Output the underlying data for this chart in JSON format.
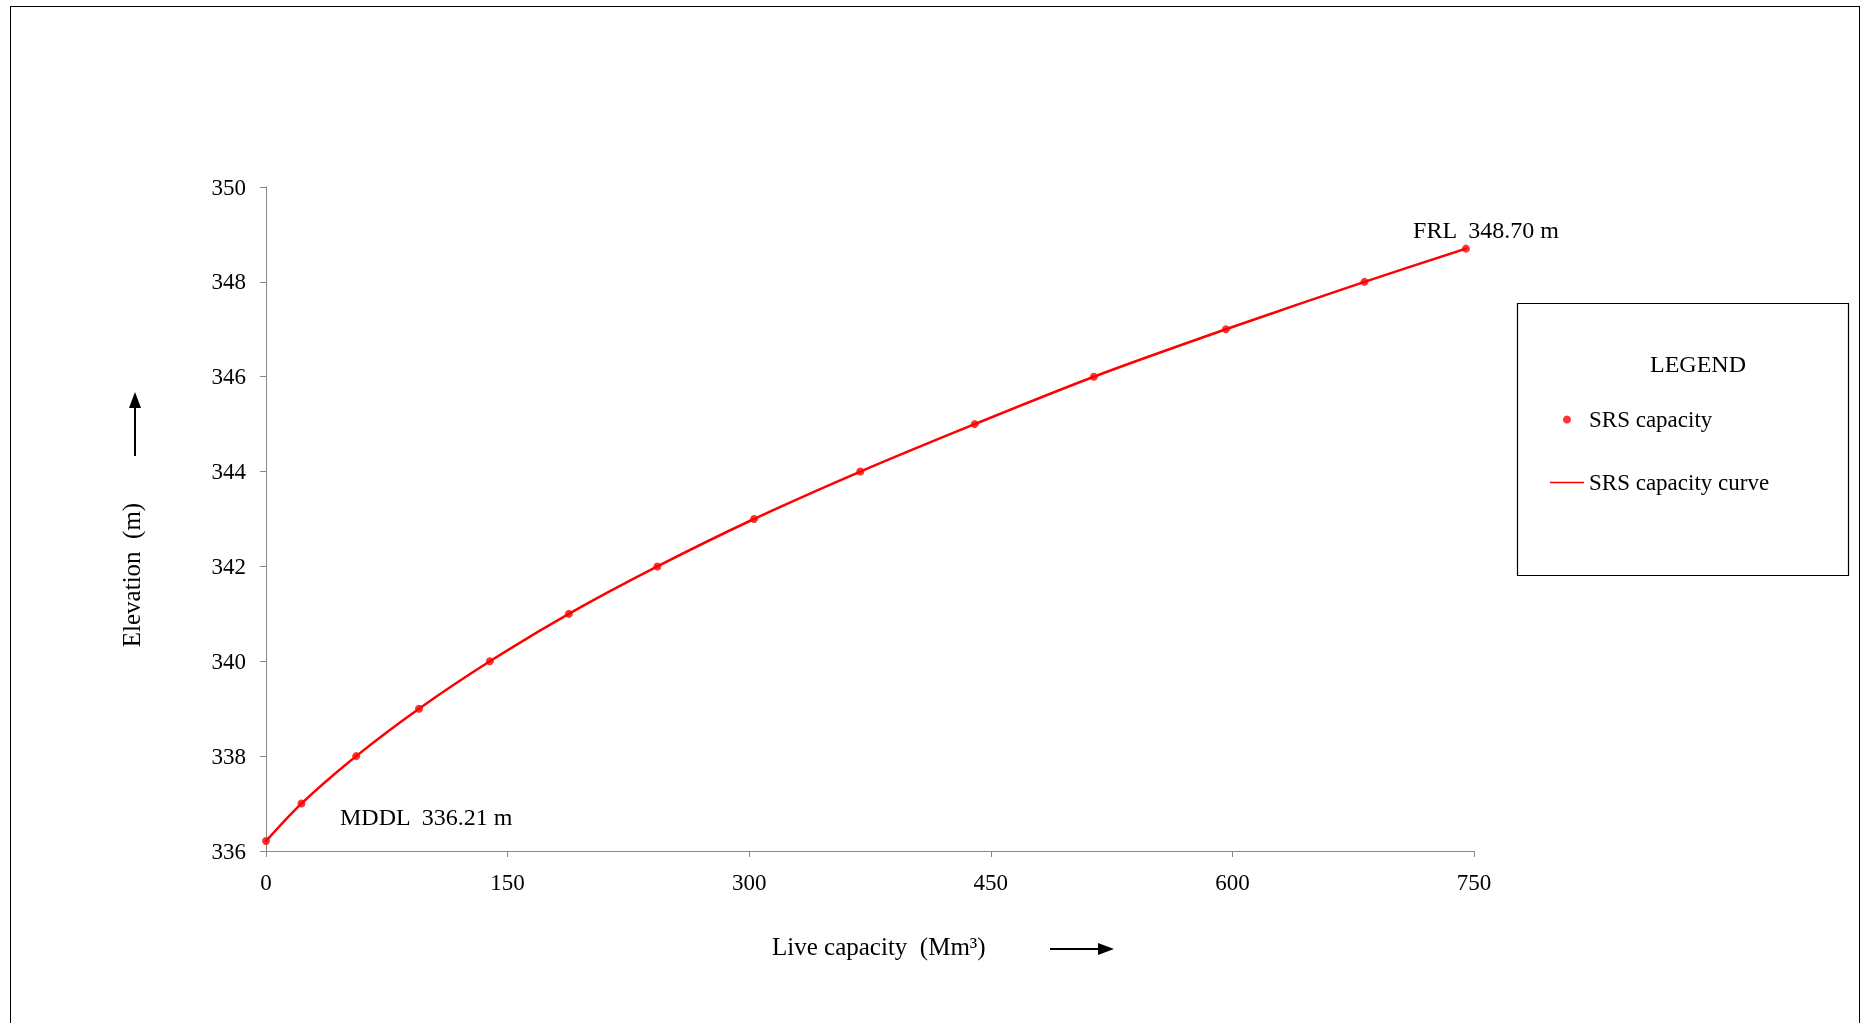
{
  "chart_data": {
    "type": "scatter",
    "xlabel": "Live capacity  (Mm³)",
    "ylabel": "Elevation  (m)",
    "legend_title": "LEGEND",
    "x": [
      0,
      22,
      56,
      95,
      139,
      188,
      243,
      303,
      369,
      440,
      514,
      596,
      682,
      745
    ],
    "series": [
      {
        "name": "SRS capacity",
        "color": "#ff0000",
        "marker": "circle",
        "values": [
          336.21,
          337,
          338,
          339,
          340,
          341,
          342,
          343,
          344,
          345,
          346,
          347,
          348,
          348.7
        ]
      },
      {
        "name": "SRS capacity curve",
        "type": "line",
        "color": "#ff0000",
        "marker": "none",
        "line_style": "solid",
        "values": [
          336.21,
          337,
          338,
          339,
          340,
          341,
          342,
          343,
          344,
          345,
          346,
          347,
          348,
          348.7
        ]
      }
    ],
    "xlim": [
      0,
      750
    ],
    "xticks": [
      0,
      150,
      300,
      450,
      600,
      750
    ],
    "ylim": [
      336,
      350
    ],
    "yticks": [
      336,
      338,
      340,
      342,
      344,
      346,
      348,
      350
    ],
    "annotations": [
      "MDDL  336.21 m",
      {
        "text": "FRL  348.70 m",
        "x": 745,
        "y": 348.7
      }
    ],
    "grid": false,
    "legend": "right"
  }
}
